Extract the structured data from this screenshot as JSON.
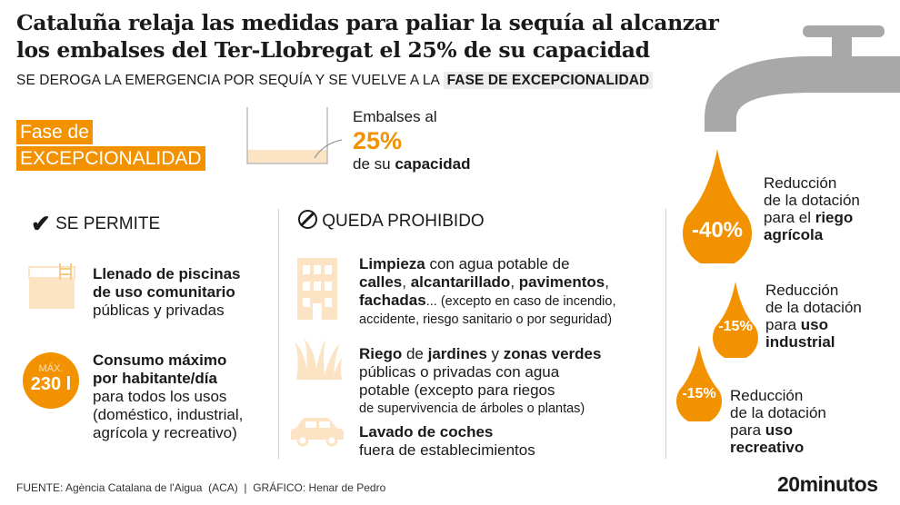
{
  "title": {
    "line1": "Cataluña relaja las medidas para paliar la sequía al alcanzar",
    "line2": "los embalses del Ter-Llobregat el 25% de su capacidad"
  },
  "subtitle": {
    "text": "SE DEROGA LA EMERGENCIA POR SEQUÍA Y SE VUELVE A LA",
    "highlight": "FASE DE EXCEPCIONALIDAD"
  },
  "phase": {
    "line1": "Fase de",
    "line2": "EXCEPCIONALIDAD"
  },
  "reservoir": {
    "line1": "Embalses al",
    "value": "25%",
    "line3a": "de su ",
    "line3b": "capacidad",
    "fill_percent": 25
  },
  "allowed": {
    "heading": "SE PERMITE",
    "items": [
      {
        "bold1": "Llenado de piscinas",
        "bold2": "de uso comunitario",
        "rest": "públicas y privadas"
      },
      {
        "badge_top": "MÁX.",
        "badge_value": "230 l",
        "bold1": "Consumo máximo",
        "bold2": "por habitante/día",
        "rest1": "para todos los usos",
        "rest2": "(doméstico, industrial,",
        "rest3": "agrícola y recreativo)"
      }
    ]
  },
  "prohibited": {
    "heading": "QUEDA PROHIBIDO",
    "items": [
      {
        "l1b": "Limpieza",
        "l1": " con agua potable de",
        "l2b1": "calles",
        "l2s1": ", ",
        "l2b2": "alcantarillado",
        "l2s2": ", ",
        "l2b3": "pavimentos",
        "l2s3": ",",
        "l3b": "fachadas",
        "l3": "... (excepto en caso de incendio,",
        "l4": "accidente, riesgo sanitario o por seguridad)"
      },
      {
        "l1b1": "Riego",
        "l1a": " de ",
        "l1b2": "jardines",
        "l1c": " y ",
        "l1b3": "zonas verdes",
        "l2": "públicas o privadas con agua",
        "l3": "potable (excepto para riegos",
        "l4": "de supervivencia de árboles o plantas)"
      },
      {
        "l1b": "Lavado de coches",
        "l2": "fuera de establecimientos"
      }
    ]
  },
  "reductions": [
    {
      "value": "-40%",
      "l1": "Reducción",
      "l2": "de la dotación",
      "l3": "para el ",
      "l3b": "riego",
      "l4b": "agrícola"
    },
    {
      "value": "-15%",
      "l1": "Reducción",
      "l2": "de la dotación",
      "l3": "para ",
      "l3b": "uso",
      "l4b": "industrial"
    },
    {
      "value": "-15%",
      "l1": "Reducción",
      "l2": "de la dotación",
      "l3": "para ",
      "l3b": "uso",
      "l4b": "recreativo"
    }
  ],
  "footer": {
    "source": "FUENTE: Agència Catalana de l'Aigua  (ACA)  |  GRÁFICO: Henar de Pedro",
    "logo": "20minutos"
  },
  "colors": {
    "orange": "#f39200",
    "peach": "#fbe3c3",
    "tap": "#a8a8a8"
  }
}
